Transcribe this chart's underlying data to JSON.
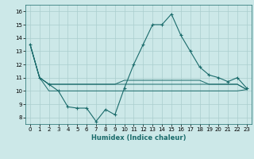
{
  "title": "",
  "xlabel": "Humidex (Indice chaleur)",
  "xlim": [
    -0.5,
    23.5
  ],
  "ylim": [
    7.5,
    16.5
  ],
  "yticks": [
    8,
    9,
    10,
    11,
    12,
    13,
    14,
    15,
    16
  ],
  "xticks": [
    0,
    1,
    2,
    3,
    4,
    5,
    6,
    7,
    8,
    9,
    10,
    11,
    12,
    13,
    14,
    15,
    16,
    17,
    18,
    19,
    20,
    21,
    22,
    23
  ],
  "bg_color": "#cce8e8",
  "grid_color": "#aacece",
  "line_color": "#1a6b6b",
  "series_main": [
    13.5,
    11.0,
    10.5,
    10.0,
    8.8,
    8.7,
    8.7,
    7.7,
    8.6,
    8.2,
    10.2,
    12.0,
    13.5,
    15.0,
    15.0,
    15.8,
    14.2,
    13.0,
    11.8,
    11.2,
    11.0,
    10.7,
    11.0,
    10.2
  ],
  "series_flat1": [
    13.5,
    11.0,
    10.5,
    10.5,
    10.5,
    10.5,
    10.5,
    10.5,
    10.5,
    10.5,
    10.5,
    10.5,
    10.5,
    10.5,
    10.5,
    10.5,
    10.5,
    10.5,
    10.5,
    10.5,
    10.5,
    10.5,
    10.5,
    10.1
  ],
  "series_flat2": [
    13.5,
    11.0,
    10.5,
    10.5,
    10.5,
    10.5,
    10.5,
    10.5,
    10.5,
    10.5,
    10.8,
    10.8,
    10.8,
    10.8,
    10.8,
    10.8,
    10.8,
    10.8,
    10.8,
    10.5,
    10.5,
    10.5,
    10.5,
    10.1
  ],
  "series_flat3": [
    13.5,
    11.0,
    10.0,
    10.0,
    10.0,
    10.0,
    10.0,
    10.0,
    10.0,
    10.0,
    10.0,
    10.0,
    10.0,
    10.0,
    10.0,
    10.0,
    10.0,
    10.0,
    10.0,
    10.0,
    10.0,
    10.0,
    10.0,
    10.1
  ]
}
